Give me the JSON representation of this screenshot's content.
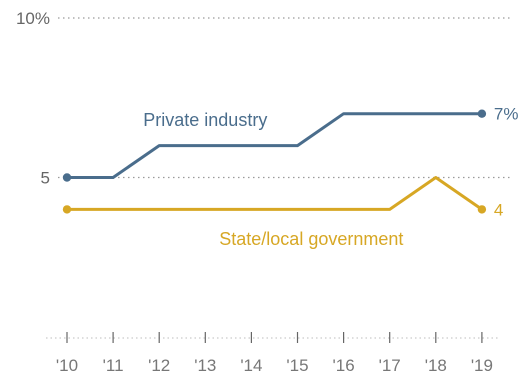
{
  "chart_data": {
    "type": "line",
    "title": "",
    "xlabel": "",
    "ylabel": "",
    "x": [
      "'10",
      "'11",
      "'12",
      "'13",
      "'14",
      "'15",
      "'16",
      "'17",
      "'18",
      "'19"
    ],
    "ylim": [
      0,
      10
    ],
    "y_ticks": [
      {
        "value": 10,
        "label": "10%"
      },
      {
        "value": 5,
        "label": "5"
      }
    ],
    "grid": "dotted horizontal lines at 5 and 10",
    "series": [
      {
        "name": "Private industry",
        "values": [
          5,
          5,
          6,
          6,
          6,
          6,
          7,
          7,
          7,
          7
        ],
        "end_label": "7%",
        "color": "#4a6d8c"
      },
      {
        "name": "State/local government",
        "values": [
          4,
          4,
          4,
          4,
          4,
          4,
          4,
          4,
          5,
          4
        ],
        "end_label": "4",
        "color": "#d7a724"
      }
    ]
  }
}
